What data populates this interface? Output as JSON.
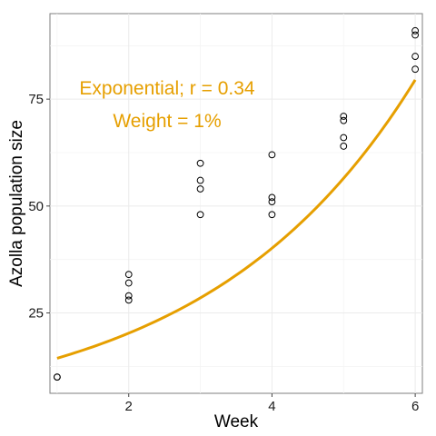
{
  "chart_data": {
    "type": "scatter",
    "xlabel": "Week",
    "ylabel": "Azolla population size",
    "xlim": [
      0.9,
      6.1
    ],
    "ylim": [
      6.2,
      95
    ],
    "x_ticks": [
      2,
      4,
      6
    ],
    "y_ticks": [
      25,
      50,
      75
    ],
    "grid": true,
    "points": [
      {
        "x": 1,
        "y": 10
      },
      {
        "x": 1,
        "y": 10
      },
      {
        "x": 2,
        "y": 28
      },
      {
        "x": 2,
        "y": 29
      },
      {
        "x": 2,
        "y": 32
      },
      {
        "x": 2,
        "y": 34
      },
      {
        "x": 3,
        "y": 48
      },
      {
        "x": 3,
        "y": 54
      },
      {
        "x": 3,
        "y": 56
      },
      {
        "x": 3,
        "y": 60
      },
      {
        "x": 4,
        "y": 48
      },
      {
        "x": 4,
        "y": 51
      },
      {
        "x": 4,
        "y": 52
      },
      {
        "x": 4,
        "y": 62
      },
      {
        "x": 5,
        "y": 64
      },
      {
        "x": 5,
        "y": 66
      },
      {
        "x": 5,
        "y": 70
      },
      {
        "x": 5,
        "y": 71
      },
      {
        "x": 6,
        "y": 82
      },
      {
        "x": 6,
        "y": 85
      },
      {
        "x": 6,
        "y": 90
      },
      {
        "x": 6,
        "y": 91
      }
    ],
    "fit": {
      "model": "exponential",
      "x_range": [
        1,
        6
      ],
      "y_start": 14.4,
      "y_end": 79.5,
      "color": "#E69F00"
    },
    "annotations": [
      "Exponential; r = 0.34",
      "Weight = 1%"
    ]
  }
}
